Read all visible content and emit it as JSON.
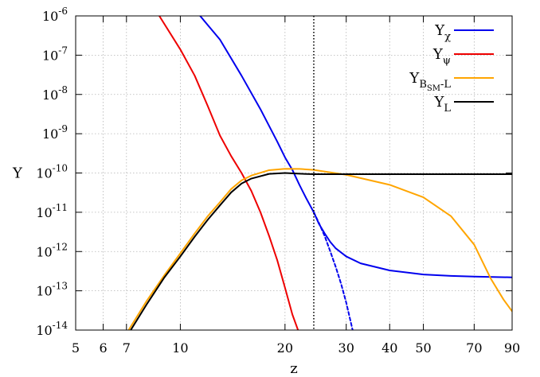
{
  "chart_data": {
    "type": "line",
    "xlabel": "z",
    "ylabel": "Y",
    "xscale": "log",
    "yscale": "log",
    "xlim": [
      5,
      90
    ],
    "ylim": [
      1e-14,
      1e-06
    ],
    "x_ticks": [
      5,
      6,
      7,
      10,
      20,
      30,
      40,
      50,
      70,
      90
    ],
    "x_tick_labels": [
      "5",
      "6",
      "7",
      "10",
      "20",
      "30",
      "40",
      "50",
      "70",
      "90"
    ],
    "y_ticks": [
      1e-14,
      1e-13,
      1e-12,
      1e-11,
      1e-10,
      1e-09,
      1e-08,
      1e-07,
      1e-06
    ],
    "y_tick_exponents": [
      "-14",
      "-13",
      "-12",
      "-11",
      "-10",
      "-9",
      "-8",
      "-7",
      "-6"
    ],
    "y_tick_base": "10",
    "grid": true,
    "legend_position": "top-right",
    "vertical_line": {
      "x": 24.2,
      "style": "dotted"
    },
    "series": [
      {
        "name": "Y_χ",
        "legend_main": "Y",
        "legend_sub": "χ",
        "color": "#0000ee",
        "x": [
          11.4,
          13,
          15,
          17,
          19,
          20,
          21,
          22,
          23,
          24.2,
          25,
          26,
          27,
          28,
          30,
          33,
          40,
          50,
          60,
          70,
          90
        ],
        "y": [
          1e-06,
          2.5e-07,
          3e-08,
          4.2e-09,
          6.3e-10,
          2.5e-10,
          1.2e-10,
          5e-11,
          2.3e-11,
          1e-11,
          5.2e-12,
          2.9e-12,
          1.75e-12,
          1.2e-12,
          7.5e-13,
          5e-13,
          3.3e-13,
          2.6e-13,
          2.4e-13,
          2.3e-13,
          2.2e-13
        ]
      },
      {
        "name": "Y_χ (dashed continuation)",
        "color": "#0000ee",
        "dashed": true,
        "x": [
          24.2,
          25,
          26,
          27,
          28,
          29,
          30,
          31.3
        ],
        "y": [
          1e-11,
          5.5e-12,
          2.5e-12,
          1e-12,
          4e-13,
          1.5e-13,
          5e-14,
          1e-14
        ]
      },
      {
        "name": "Y_ψ",
        "legend_main": "Y",
        "legend_sub": "ψ",
        "color": "#ee0000",
        "x": [
          8.7,
          10,
          11,
          12,
          13,
          14,
          15,
          16,
          17,
          18,
          19,
          20,
          21,
          21.8
        ],
        "y": [
          1e-06,
          1.4e-07,
          3e-08,
          5e-09,
          9e-10,
          2.7e-10,
          1e-10,
          3.5e-11,
          1e-11,
          2.5e-12,
          6e-13,
          1.2e-13,
          2.5e-14,
          1e-14
        ]
      },
      {
        "name": "Y_{B_SM-L}",
        "legend_main": "Y",
        "legend_sub": "B",
        "legend_subsub": "SM",
        "legend_tail": "-L",
        "color": "#ffa500",
        "x": [
          7.1,
          8,
          9,
          10,
          11,
          12,
          13,
          14,
          15,
          16,
          18,
          20,
          22,
          24.2,
          30,
          40,
          50,
          60,
          70,
          78,
          85,
          90
        ],
        "y": [
          1e-14,
          5.5e-14,
          2.5e-13,
          9e-13,
          2.9e-12,
          8e-12,
          1.8e-11,
          3.9e-11,
          6.5e-11,
          8.6e-11,
          1.18e-10,
          1.28e-10,
          1.27e-10,
          1.2e-10,
          9e-11,
          5e-11,
          2.4e-11,
          8e-12,
          1.5e-12,
          2.1e-13,
          6e-14,
          3e-14
        ]
      },
      {
        "name": "Y_L",
        "legend_main": "Y",
        "legend_sub": "L",
        "color": "#000000",
        "x": [
          7.2,
          8,
          9,
          10,
          11,
          12,
          13,
          14,
          15,
          16,
          18,
          20,
          22,
          24.2,
          30,
          50,
          90
        ],
        "y": [
          1e-14,
          4.5e-14,
          2.2e-13,
          7.5e-13,
          2.4e-12,
          6.5e-12,
          1.5e-11,
          3.2e-11,
          5.4e-11,
          7.2e-11,
          9.5e-11,
          1e-10,
          9.6e-11,
          9.3e-11,
          9.3e-11,
          9.3e-11,
          9.3e-11
        ]
      }
    ]
  }
}
